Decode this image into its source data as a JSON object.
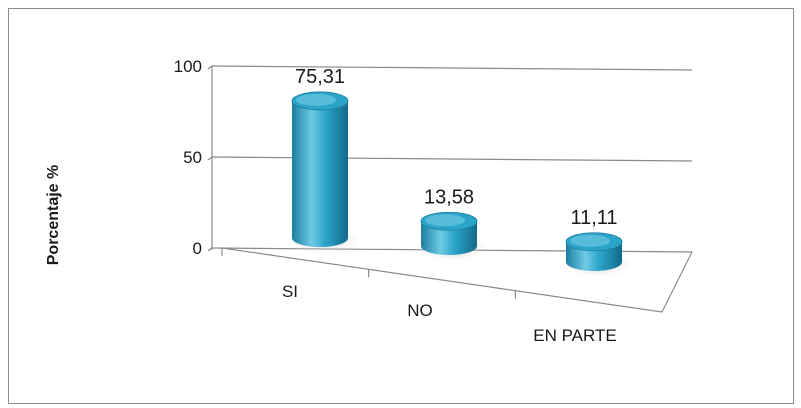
{
  "chart_data": {
    "type": "bar",
    "style": "3d-cylinder",
    "categories": [
      "SI",
      "NO",
      "EN PARTE"
    ],
    "values": [
      75.31,
      13.58,
      11.11
    ],
    "data_labels": [
      "75,31",
      "13,58",
      "11,11"
    ],
    "title": "",
    "xlabel": "",
    "ylabel": "Porcentaje %",
    "ylim": [
      0,
      100
    ],
    "yticks": [
      0,
      50,
      100
    ],
    "ytick_labels": [
      "0",
      "50",
      "100"
    ],
    "grid": true,
    "legend": "none",
    "bar_color": "#2aa4c8",
    "bar_color_dark": "#1b7ea0",
    "bar_color_light": "#8fdaf0"
  }
}
